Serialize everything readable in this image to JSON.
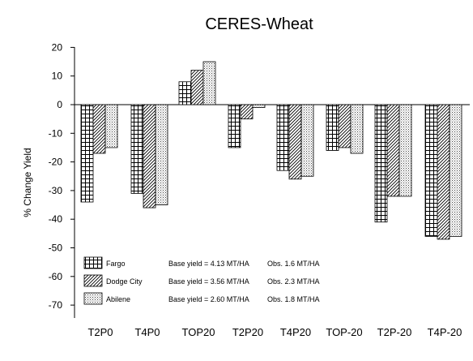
{
  "chart_data": {
    "type": "bar",
    "title": "CERES-Wheat",
    "xlabel": "",
    "ylabel": "% Change Yield",
    "ylim": [
      -75,
      20
    ],
    "yticks": [
      20,
      10,
      0,
      -10,
      -20,
      -30,
      -40,
      -50,
      -60,
      -70
    ],
    "grid": false,
    "legend_position": "bottom-left",
    "categories": [
      "T2P0",
      "T4P0",
      "TOP20",
      "T2P20",
      "T4P20",
      "TOP-20",
      "T2P-20",
      "T4P-20"
    ],
    "series": [
      {
        "name": "Fargo",
        "values": [
          -34,
          -31,
          8,
          -15,
          -23,
          -16,
          -41,
          -46
        ],
        "base_yield": "Base yield = 4.13 MT/HA",
        "obs": "Obs. 1.6 MT/HA",
        "pattern": "grid"
      },
      {
        "name": "Dodge City",
        "values": [
          -17,
          -36,
          12,
          -5,
          -26,
          -15,
          -32,
          -47
        ],
        "base_yield": "Base yield = 3.56 MT/HA",
        "obs": "Obs. 2.3 MT/HA",
        "pattern": "diagonal"
      },
      {
        "name": "Abilene",
        "values": [
          -15,
          -35,
          15,
          -1,
          -25,
          -17,
          -32,
          -46
        ],
        "base_yield": "Base yield = 2.60 MT/HA",
        "obs": "Obs. 1.8 MT/HA",
        "pattern": "dots"
      }
    ]
  }
}
